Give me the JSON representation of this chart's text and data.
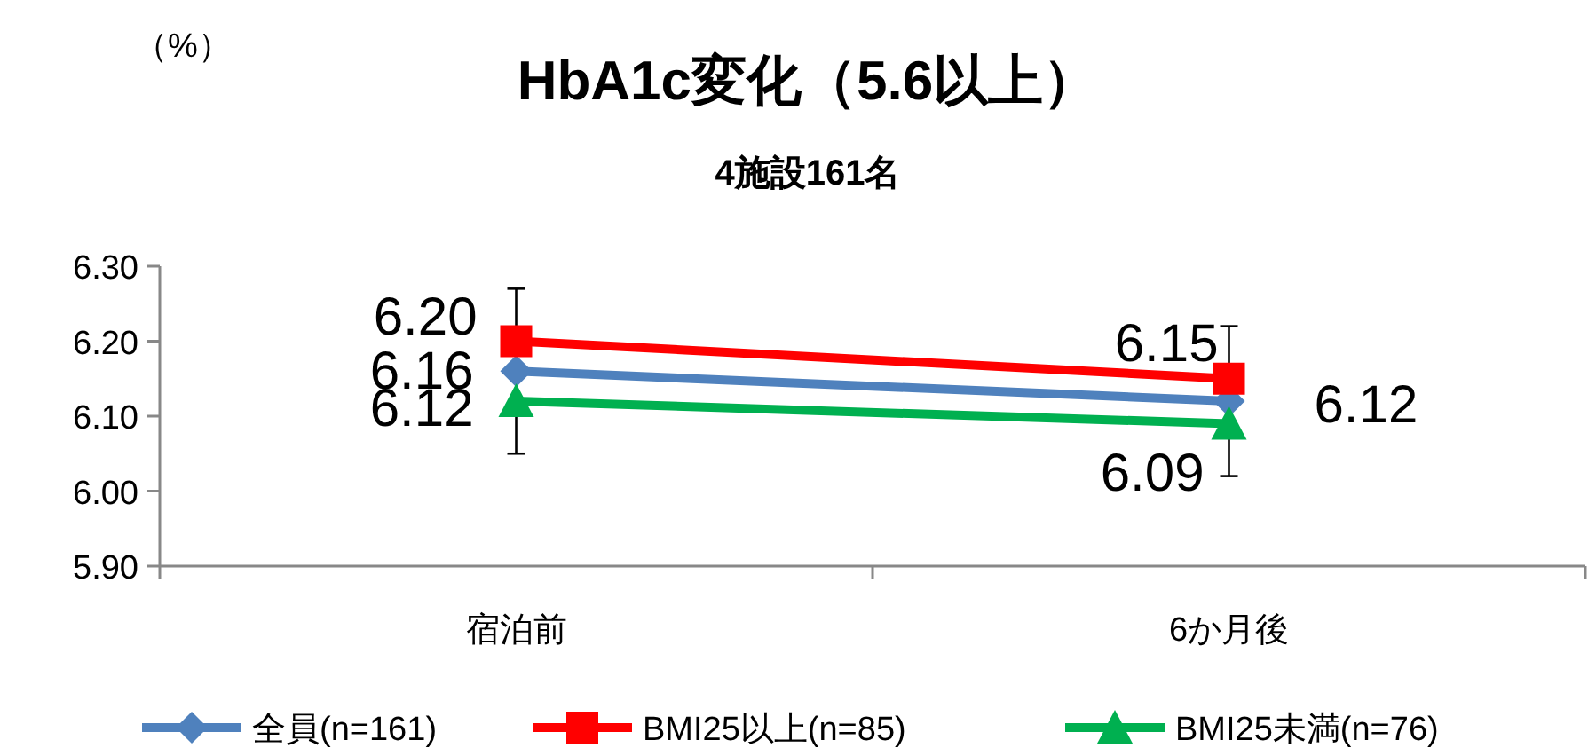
{
  "chart_data": {
    "type": "line",
    "title": "HbA1c変化（5.6以上）",
    "subtitle": "4施設161名",
    "annotations": [
      "（%）"
    ],
    "categories": [
      "宿泊前",
      "6か月後"
    ],
    "series": [
      {
        "name": "全員(n=161)",
        "color": "#4f81bd",
        "marker": "diamond",
        "values": [
          6.16,
          6.12
        ],
        "value_labels": [
          "6.16",
          "6.12"
        ],
        "errors": [
          0.11,
          0.1
        ]
      },
      {
        "name": "BMI25以上(n=85)",
        "color": "#ff0000",
        "marker": "square",
        "values": [
          6.2,
          6.15
        ],
        "value_labels": [
          "6.20",
          "6.15"
        ]
      },
      {
        "name": "BMI25未満(n=76)",
        "color": "#00b050",
        "marker": "triangle",
        "values": [
          6.12,
          6.09
        ],
        "value_labels": [
          "6.12",
          "6.09"
        ]
      }
    ],
    "ylim": [
      5.9,
      6.3
    ],
    "yticks": [
      {
        "value": 5.9,
        "label": "5.90"
      },
      {
        "value": 6.0,
        "label": "6.00"
      },
      {
        "value": 6.1,
        "label": "6.10"
      },
      {
        "value": 6.2,
        "label": "6.20"
      },
      {
        "value": 6.3,
        "label": "6.30"
      }
    ],
    "grid": false,
    "legend": "bottom"
  }
}
